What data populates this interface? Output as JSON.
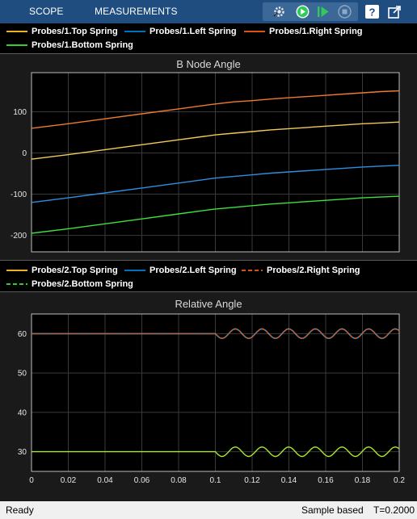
{
  "toolstrip": {
    "tabs": [
      "SCOPE",
      "MEASUREMENTS"
    ],
    "icons": [
      "settings-gear-icon",
      "run-icon",
      "step-forward-icon",
      "stop-icon",
      "help-icon",
      "undock-icon"
    ],
    "colors": {
      "background": "#1f4d80",
      "run": "#31c95a"
    }
  },
  "legend1": {
    "entries": [
      {
        "label": "Probes/1.Top Spring",
        "color": "#edb120",
        "dash": false
      },
      {
        "label": "Probes/1.Left Spring",
        "color": "#0072bd",
        "dash": false
      },
      {
        "label": "Probes/1.Right Spring",
        "color": "#d95319",
        "dash": false
      },
      {
        "label": "Probes/1.Bottom Spring",
        "color": "#2fd02f",
        "dash": false
      }
    ]
  },
  "legend2": {
    "entries": [
      {
        "label": "Probes/2.Top Spring",
        "color": "#edb120",
        "dash": false
      },
      {
        "label": "Probes/2.Left Spring",
        "color": "#0072bd",
        "dash": false
      },
      {
        "label": "Probes/2.Right Spring",
        "color": "#d95319",
        "dash": true
      },
      {
        "label": "Probes/2.Bottom Spring",
        "color": "#2fd02f",
        "dash": true
      }
    ]
  },
  "status": {
    "left": "Ready",
    "mode": "Sample based",
    "time": "T=0.2000"
  },
  "chart_data": [
    {
      "type": "line",
      "title": "B Node Angle",
      "xlim": [
        0,
        0.2
      ],
      "ylim": [
        -240,
        195
      ],
      "yticks": [
        100,
        0,
        -100,
        -200
      ],
      "grid": true,
      "series": [
        {
          "name": "Probes/1.Right Spring",
          "color": "#f07a30",
          "x": [
            0,
            0.02,
            0.04,
            0.06,
            0.08,
            0.1,
            0.11,
            0.12,
            0.13,
            0.14,
            0.15,
            0.16,
            0.17,
            0.18,
            0.19,
            0.2
          ],
          "values": [
            60,
            71,
            83,
            95,
            107,
            119,
            124,
            127,
            131,
            134,
            137,
            140,
            143,
            146,
            149,
            151
          ]
        },
        {
          "name": "Probes/1.Top Spring",
          "color": "#f5c85a",
          "x": [
            0,
            0.02,
            0.04,
            0.06,
            0.08,
            0.1,
            0.11,
            0.12,
            0.13,
            0.14,
            0.15,
            0.16,
            0.17,
            0.18,
            0.19,
            0.2
          ],
          "values": [
            -15,
            -4,
            8,
            20,
            32,
            44,
            48,
            52,
            56,
            59,
            62,
            65,
            68,
            71,
            73,
            75
          ]
        },
        {
          "name": "Probes/1.Left Spring",
          "color": "#2f8ee0",
          "x": [
            0,
            0.02,
            0.04,
            0.06,
            0.08,
            0.1,
            0.11,
            0.12,
            0.13,
            0.14,
            0.15,
            0.16,
            0.17,
            0.18,
            0.19,
            0.2
          ],
          "values": [
            -120,
            -109,
            -97,
            -85,
            -73,
            -61,
            -57,
            -53,
            -49,
            -46,
            -43,
            -40,
            -37,
            -34,
            -32,
            -30
          ]
        },
        {
          "name": "Probes/1.Bottom Spring",
          "color": "#3fe03f",
          "x": [
            0,
            0.02,
            0.04,
            0.06,
            0.08,
            0.1,
            0.11,
            0.12,
            0.13,
            0.14,
            0.15,
            0.16,
            0.17,
            0.18,
            0.19,
            0.2
          ],
          "values": [
            -195,
            -184,
            -172,
            -160,
            -148,
            -136,
            -132,
            -128,
            -124,
            -121,
            -118,
            -115,
            -112,
            -109,
            -107,
            -105
          ]
        }
      ]
    },
    {
      "type": "line",
      "title": "Relative Angle",
      "xlim": [
        0,
        0.2
      ],
      "ylim": [
        25,
        65
      ],
      "yticks": [
        60,
        50,
        40,
        30
      ],
      "xticks": [
        0,
        0.02,
        0.04,
        0.06,
        0.08,
        0.1,
        0.12,
        0.14,
        0.16,
        0.18,
        0.2
      ],
      "grid": true,
      "series": [
        {
          "name": "Probes/2.Top Spring",
          "color": "#f5c85a",
          "baseline": 60,
          "amplitude": 1.2,
          "start": 0.1,
          "period": 0.0145
        },
        {
          "name": "Probes/2.Left Spring",
          "color": "#2f8ee0",
          "baseline": 60,
          "amplitude": 1.2,
          "start": 0.1,
          "period": 0.0145
        },
        {
          "name": "Probes/2.Right Spring",
          "color": "#d95319",
          "baseline": 60,
          "amplitude": 1.2,
          "start": 0.1,
          "period": 0.0145
        },
        {
          "name": "Probes/2.Bottom Spring",
          "color": "#a8e82a",
          "baseline": 30,
          "amplitude": 1.2,
          "start": 0.1,
          "period": 0.0145
        }
      ]
    }
  ]
}
